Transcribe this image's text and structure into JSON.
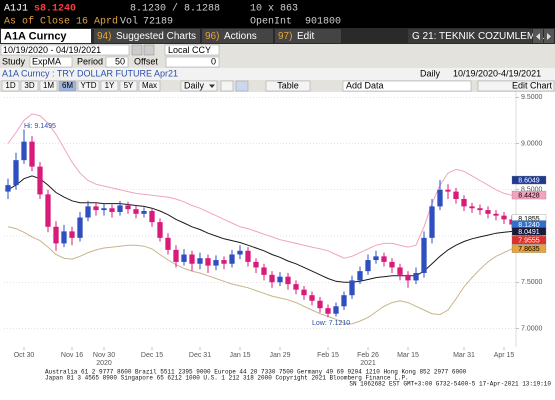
{
  "header": {
    "ticker": "A1J1",
    "last": "s8.1240",
    "bid_ask": "8.1230 / 8.1288",
    "size": "10 x 863",
    "as_of": "As of Close 16 Aprd",
    "vol_label": "Vol",
    "vol": "72189",
    "oi_label": "OpenInt",
    "oi": "901800"
  },
  "toolbar": {
    "security": "A1A Curncy",
    "buttons": [
      {
        "key": "94)",
        "label": "Suggested Charts"
      },
      {
        "key": "96)",
        "label": "Actions"
      },
      {
        "key": "97)",
        "label": "Edit"
      }
    ],
    "page": "G 21: TEKNIK COZUMLEM…"
  },
  "range": {
    "dates": "10/19/2020 - 04/19/2021",
    "currency": "Local CCY"
  },
  "study": {
    "label": "Study",
    "name": "ExpMA",
    "period_label": "Period",
    "period": "50",
    "offset_label": "Offset",
    "offset": "0"
  },
  "info": {
    "title": "A1A Curncy : TRY DOLLAR FUTURE Apr21",
    "frequency": "Daily",
    "span": "10/19/2020-4/19/2021"
  },
  "periods": [
    "1D",
    "3D",
    "1M",
    "6M",
    "YTD",
    "1Y",
    "5Y",
    "Max"
  ],
  "active_period": "6M",
  "frequency_menu": "Daily",
  "table_button": "Table",
  "add_data": "Add Data",
  "edit_chart": "Edit Chart",
  "chart_data": {
    "type": "candlestick",
    "categories": [
      null,
      null,
      "Oct 30",
      null,
      null,
      null,
      null,
      null,
      "Nov 16",
      null,
      null,
      null,
      "Nov 30",
      null,
      null,
      null,
      null,
      null,
      "Dec 15",
      null,
      null,
      null,
      null,
      null,
      "Dec 31",
      null,
      null,
      null,
      null,
      "Jan 15",
      null,
      null,
      null,
      null,
      "Jan 29",
      null,
      null,
      null,
      null,
      null,
      "Feb 15",
      null,
      null,
      null,
      null,
      "Feb 26",
      null,
      null,
      null,
      null,
      "Mar 15",
      null,
      null,
      null,
      null,
      null,
      null,
      "Mar 31",
      null,
      null,
      null,
      null,
      "Apr 15",
      null
    ],
    "year_labels": [
      "2020",
      "2021"
    ],
    "open": [
      8.48,
      8.55,
      8.82,
      9.02,
      8.75,
      8.45,
      8.1,
      7.92,
      8.05,
      7.98,
      8.2,
      8.32,
      8.28,
      8.3,
      8.26,
      8.33,
      8.29,
      8.24,
      8.27,
      8.15,
      7.98,
      7.85,
      7.72,
      7.8,
      7.7,
      7.76,
      7.68,
      7.74,
      7.7,
      7.8,
      7.84,
      7.72,
      7.66,
      7.58,
      7.5,
      7.56,
      7.48,
      7.42,
      7.36,
      7.3,
      7.22,
      7.16,
      7.24,
      7.36,
      7.52,
      7.62,
      7.74,
      7.78,
      7.72,
      7.66,
      7.58,
      7.52,
      7.6,
      7.98,
      8.32,
      8.5,
      8.48,
      8.4,
      8.32,
      8.3,
      8.28,
      8.24,
      8.22,
      8.18
    ],
    "high": [
      8.62,
      8.9,
      9.1495,
      9.08,
      8.8,
      8.5,
      8.16,
      8.12,
      8.1,
      8.26,
      8.38,
      8.36,
      8.35,
      8.34,
      8.38,
      8.37,
      8.33,
      8.31,
      8.3,
      8.19,
      8.03,
      7.9,
      7.86,
      7.84,
      7.82,
      7.8,
      7.79,
      7.78,
      7.85,
      7.9,
      7.88,
      7.76,
      7.7,
      7.62,
      7.61,
      7.6,
      7.52,
      7.46,
      7.4,
      7.34,
      7.26,
      7.28,
      7.4,
      7.57,
      7.67,
      7.8,
      7.84,
      7.82,
      7.76,
      7.7,
      7.62,
      7.66,
      8.05,
      8.4,
      8.6049,
      8.56,
      8.52,
      8.44,
      8.36,
      8.34,
      8.32,
      8.28,
      8.26,
      8.22
    ],
    "low": [
      8.4,
      8.5,
      8.78,
      8.7,
      8.4,
      8.04,
      7.84,
      7.88,
      7.9,
      7.94,
      8.16,
      8.22,
      8.22,
      8.2,
      8.22,
      8.24,
      8.19,
      8.2,
      8.1,
      7.94,
      7.8,
      7.66,
      7.68,
      7.62,
      7.64,
      7.6,
      7.63,
      7.64,
      7.66,
      7.75,
      7.67,
      7.6,
      7.52,
      7.44,
      7.46,
      7.42,
      7.37,
      7.31,
      7.25,
      7.17,
      7.121,
      7.13,
      7.2,
      7.32,
      7.48,
      7.58,
      7.7,
      7.67,
      7.6,
      7.52,
      7.44,
      7.48,
      7.55,
      7.92,
      8.28,
      8.4,
      8.35,
      8.27,
      8.25,
      8.23,
      8.19,
      8.17,
      8.13,
      8.08
    ],
    "close": [
      8.55,
      8.82,
      9.02,
      8.75,
      8.45,
      8.1,
      7.92,
      8.05,
      7.98,
      8.2,
      8.32,
      8.28,
      8.3,
      8.26,
      8.33,
      8.29,
      8.24,
      8.27,
      8.15,
      7.98,
      7.85,
      7.72,
      7.8,
      7.7,
      7.76,
      7.68,
      7.74,
      7.7,
      7.8,
      7.84,
      7.72,
      7.66,
      7.58,
      7.5,
      7.56,
      7.48,
      7.42,
      7.36,
      7.3,
      7.22,
      7.16,
      7.24,
      7.36,
      7.52,
      7.62,
      7.74,
      7.78,
      7.72,
      7.66,
      7.58,
      7.52,
      7.6,
      7.98,
      8.32,
      8.5,
      8.48,
      8.4,
      8.32,
      8.3,
      8.28,
      8.24,
      8.22,
      8.18,
      8.124
    ],
    "up_color": "#2f4fc0",
    "down_color": "#d81b7a",
    "lines": [
      {
        "color": "#f2a3c0",
        "values": [
          9.0,
          9.12,
          9.25,
          9.32,
          9.3,
          9.22,
          9.1,
          8.95,
          8.8,
          8.68,
          8.6,
          8.56,
          8.54,
          8.52,
          8.5,
          8.48,
          8.46,
          8.45,
          8.44,
          8.43,
          8.42,
          8.4,
          8.37,
          8.33,
          8.3,
          8.26,
          8.22,
          8.18,
          8.14,
          8.1,
          8.08,
          8.05,
          8.02,
          7.99,
          7.96,
          7.94,
          7.92,
          7.9,
          7.88,
          7.86,
          7.84,
          7.8,
          7.76,
          7.78,
          7.82,
          7.86,
          7.9,
          7.92,
          7.92,
          7.9,
          7.88,
          7.9,
          8.1,
          8.35,
          8.55,
          8.68,
          8.72,
          8.7,
          8.65,
          8.6,
          8.55,
          8.5,
          8.46,
          8.44
        ]
      },
      {
        "color": "#c8b48a",
        "values": [
          8.1,
          8.08,
          8.04,
          7.99,
          7.95,
          7.88,
          7.8,
          7.76,
          7.75,
          7.78,
          7.82,
          7.85,
          7.87,
          7.88,
          7.89,
          7.9,
          7.9,
          7.89,
          7.86,
          7.8,
          7.74,
          7.69,
          7.65,
          7.62,
          7.6,
          7.57,
          7.54,
          7.51,
          7.48,
          7.46,
          7.44,
          7.41,
          7.38,
          7.35,
          7.33,
          7.31,
          7.28,
          7.24,
          7.2,
          7.16,
          7.13,
          7.1,
          7.06,
          7.05,
          7.08,
          7.12,
          7.18,
          7.24,
          7.28,
          7.3,
          7.28,
          7.24,
          7.2,
          7.16,
          7.15,
          7.2,
          7.32,
          7.45,
          7.55,
          7.64,
          7.72,
          7.78,
          7.82,
          7.86
        ]
      },
      {
        "color": "#1a1a1a",
        "values": [
          8.5,
          8.55,
          8.62,
          8.65,
          8.62,
          8.55,
          8.47,
          8.42,
          8.38,
          8.36,
          8.36,
          8.36,
          8.35,
          8.35,
          8.35,
          8.34,
          8.33,
          8.32,
          8.3,
          8.27,
          8.23,
          8.18,
          8.14,
          8.1,
          8.07,
          8.03,
          8.0,
          7.97,
          7.95,
          7.93,
          7.9,
          7.87,
          7.84,
          7.8,
          7.77,
          7.73,
          7.7,
          7.66,
          7.62,
          7.58,
          7.54,
          7.51,
          7.5,
          7.5,
          7.51,
          7.53,
          7.55,
          7.56,
          7.57,
          7.57,
          7.57,
          7.57,
          7.62,
          7.7,
          7.78,
          7.85,
          7.9,
          7.94,
          7.97,
          7.99,
          8.01,
          8.03,
          8.04,
          8.05
        ]
      }
    ],
    "ylim": [
      6.8,
      9.6
    ],
    "yticks": [
      {
        "value": 7.0,
        "label": "7.0000"
      },
      {
        "value": 7.5,
        "label": "7.5000"
      },
      {
        "value": 8.0,
        "label": "8.0000"
      },
      {
        "value": 8.5,
        "label": "8.5000"
      },
      {
        "value": 9.0,
        "label": "9.0000"
      },
      {
        "value": 9.5,
        "label": "9.5000"
      }
    ],
    "grid": true,
    "price_labels": [
      {
        "value": 8.6049,
        "color": "#1f3a93",
        "text_color": "#ffffff"
      },
      {
        "value": 8.4428,
        "color": "#f2a3c0",
        "text_color": "#000000"
      },
      {
        "value": 8.1855,
        "color": "#ffffff",
        "text_color": "#000000"
      },
      {
        "value": 8.124,
        "label": "8.1240",
        "color": "#2f6fd0",
        "text_color": "#ffffff"
      },
      {
        "value": 8.0491,
        "color": "#1a1a3a",
        "text_color": "#ffffff"
      },
      {
        "value": 7.9555,
        "color": "#e0302a",
        "text_color": "#ffffff"
      },
      {
        "value": 7.8635,
        "color": "#e8a33c",
        "text_color": "#000000"
      }
    ],
    "annotations": [
      {
        "text": "Hi: 9.1495"
      },
      {
        "text": "Low: 7.1210"
      }
    ]
  },
  "footer": [
    "Australia 61 2 9777 8600 Brazil 5511 2395 9000 Europe 44 20 7330 7500 Germany 49 69 9204 1210 Hong Kong 852 2977 6000",
    "Japan 81 3 4565 8900 Singapore 65 6212 1000 U.S. 1 212 318 2000 Copyright 2021 Bloomberg Finance L.P.",
    "SN 1062682 EST GMT+3:00 G732-5400-5 17-Apr-2021 13:19:10"
  ]
}
